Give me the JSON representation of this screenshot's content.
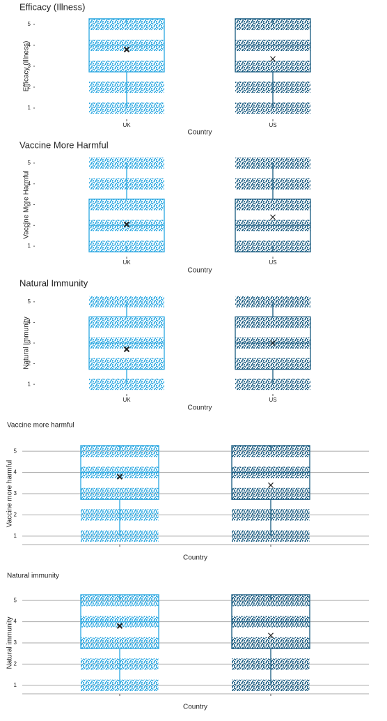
{
  "chart_data": [
    {
      "type": "box",
      "title": "Efficacy (Illness)",
      "ylabel": "Efficacy (Illness)",
      "xlabel": "Country",
      "categories": [
        "UK",
        "US"
      ],
      "colors": [
        "#2aa7e1",
        "#175a80"
      ],
      "boxes": [
        {
          "min": 1,
          "q1": 3,
          "median": 4,
          "q3": 5,
          "max": 5,
          "mean": 3.8
        },
        {
          "min": 1,
          "q1": 3,
          "median": 4,
          "q3": 5,
          "max": 5,
          "mean": 3.35
        }
      ],
      "ylim": [
        0.6,
        5.4
      ],
      "yticks": [
        1,
        2,
        3,
        4,
        5
      ],
      "grid": false
    },
    {
      "type": "box",
      "title": "Vaccine More Harmful",
      "ylabel": "Vaccine More Harmful",
      "xlabel": "Country",
      "categories": [
        "UK",
        "US"
      ],
      "colors": [
        "#2aa7e1",
        "#175a80"
      ],
      "boxes": [
        {
          "min": 1,
          "q1": 1,
          "median": 2,
          "q3": 3,
          "max": 5,
          "mean": 2.05
        },
        {
          "min": 1,
          "q1": 1,
          "median": 2,
          "q3": 3,
          "max": 5,
          "mean": 2.4
        }
      ],
      "ylim": [
        0.6,
        5.4
      ],
      "yticks": [
        1,
        2,
        3,
        4,
        5
      ],
      "grid": false
    },
    {
      "type": "box",
      "title": "Natural Immunity",
      "ylabel": "Natural Immunity",
      "xlabel": "Country",
      "categories": [
        "UK",
        "US"
      ],
      "colors": [
        "#2aa7e1",
        "#175a80"
      ],
      "boxes": [
        {
          "min": 1,
          "q1": 2,
          "median": 3,
          "q3": 4,
          "max": 5,
          "mean": 2.7
        },
        {
          "min": 1,
          "q1": 2,
          "median": 3,
          "q3": 4,
          "max": 5,
          "mean": 3.0
        }
      ],
      "ylim": [
        0.6,
        5.4
      ],
      "yticks": [
        1,
        2,
        3,
        4,
        5
      ],
      "grid": false
    },
    {
      "type": "box",
      "title": "Vaccine more harmful",
      "ylabel": "Vaccine more harmful",
      "xlabel": "Country",
      "categories": [
        null,
        null
      ],
      "colors": [
        "#2aa7e1",
        "#175a80"
      ],
      "boxes": [
        {
          "min": 1,
          "q1": 3,
          "median": 4,
          "q3": 5,
          "max": 5,
          "mean": 3.8
        },
        {
          "min": 1,
          "q1": 3,
          "median": 4,
          "q3": 5,
          "max": 5,
          "mean": 3.4
        }
      ],
      "ylim": [
        0.6,
        5.4
      ],
      "yticks": [
        1,
        2,
        3,
        4,
        5
      ],
      "grid": true
    },
    {
      "type": "box",
      "title": "Natural immunity",
      "ylabel": "Natural immunity",
      "xlabel": "Country",
      "categories": [
        null,
        null
      ],
      "colors": [
        "#2aa7e1",
        "#175a80"
      ],
      "boxes": [
        {
          "min": 1,
          "q1": 3,
          "median": 4,
          "q3": 5,
          "max": 5,
          "mean": 3.8
        },
        {
          "min": 1,
          "q1": 3,
          "median": 4,
          "q3": 5,
          "max": 5,
          "mean": 3.35
        }
      ],
      "ylim": [
        0.6,
        5.4
      ],
      "yticks": [
        1,
        2,
        3,
        4,
        5
      ],
      "grid": true
    }
  ]
}
